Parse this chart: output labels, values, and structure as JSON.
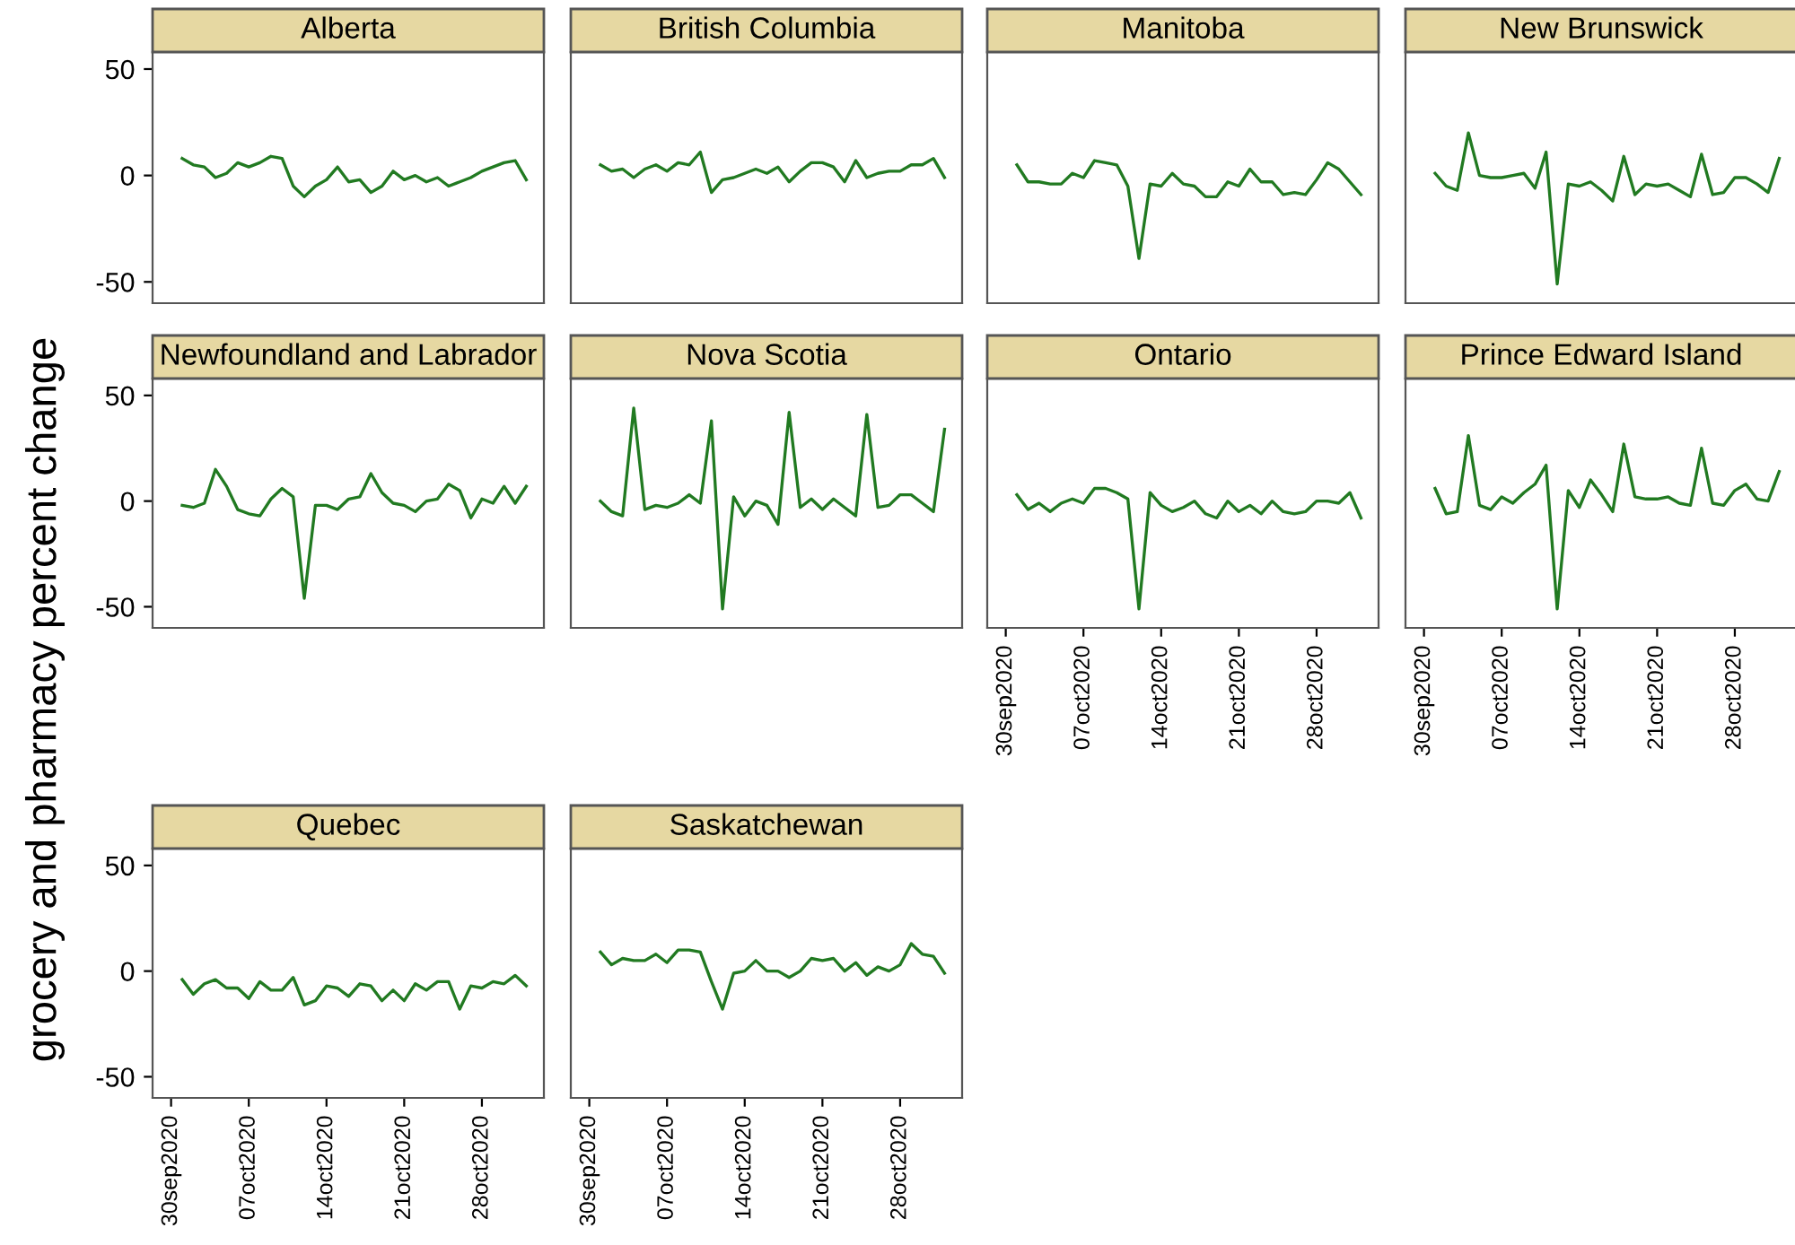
{
  "chart_data": [
    {
      "type": "line",
      "title": "Alberta",
      "ylabel": "grocery and pharmacy percent change",
      "tick_labels": "y",
      "xlim": [
        "2020-09-28T08:00",
        "2020-11-02T14:00"
      ],
      "ylim": [
        -60,
        58
      ],
      "yticks": [
        -50,
        0,
        50
      ],
      "grid": false,
      "legend": false,
      "x": [
        "2020-10-01",
        "2020-10-02",
        "2020-10-03",
        "2020-10-04",
        "2020-10-05",
        "2020-10-06",
        "2020-10-07",
        "2020-10-08",
        "2020-10-09",
        "2020-10-10",
        "2020-10-11",
        "2020-10-12",
        "2020-10-13",
        "2020-10-14",
        "2020-10-15",
        "2020-10-16",
        "2020-10-17",
        "2020-10-18",
        "2020-10-19",
        "2020-10-20",
        "2020-10-21",
        "2020-10-22",
        "2020-10-23",
        "2020-10-24",
        "2020-10-25",
        "2020-10-26",
        "2020-10-27",
        "2020-10-28",
        "2020-10-29",
        "2020-10-30",
        "2020-10-31",
        "2020-11-01"
      ],
      "series": [
        {
          "color": "#217a21",
          "values": [
            8,
            5,
            4,
            -1,
            1,
            6,
            4,
            6,
            9,
            8,
            -5,
            -10,
            -5,
            -2,
            4,
            -3,
            -2,
            -8,
            -5,
            2,
            -2,
            0,
            -3,
            -1,
            -5,
            -3,
            -1,
            2,
            4,
            6,
            7,
            -2
          ]
        }
      ]
    },
    {
      "type": "line",
      "title": "British Columbia",
      "tick_labels": false,
      "xlim": [
        "2020-09-28T08:00",
        "2020-11-02T14:00"
      ],
      "ylim": [
        -60,
        58
      ],
      "grid": false,
      "legend": false,
      "x": [
        "2020-10-01",
        "2020-10-02",
        "2020-10-03",
        "2020-10-04",
        "2020-10-05",
        "2020-10-06",
        "2020-10-07",
        "2020-10-08",
        "2020-10-09",
        "2020-10-10",
        "2020-10-11",
        "2020-10-12",
        "2020-10-13",
        "2020-10-14",
        "2020-10-15",
        "2020-10-16",
        "2020-10-17",
        "2020-10-18",
        "2020-10-19",
        "2020-10-20",
        "2020-10-21",
        "2020-10-22",
        "2020-10-23",
        "2020-10-24",
        "2020-10-25",
        "2020-10-26",
        "2020-10-27",
        "2020-10-28",
        "2020-10-29",
        "2020-10-30",
        "2020-10-31",
        "2020-11-01"
      ],
      "series": [
        {
          "color": "#217a21",
          "values": [
            5,
            2,
            3,
            -1,
            3,
            5,
            2,
            6,
            5,
            11,
            -8,
            -2,
            -1,
            1,
            3,
            1,
            4,
            -3,
            2,
            6,
            6,
            4,
            -3,
            7,
            -1,
            1,
            2,
            2,
            5,
            5,
            8,
            -1
          ]
        }
      ]
    },
    {
      "type": "line",
      "title": "Manitoba",
      "tick_labels": false,
      "xlim": [
        "2020-09-28T08:00",
        "2020-11-02T14:00"
      ],
      "ylim": [
        -60,
        58
      ],
      "grid": false,
      "legend": false,
      "x": [
        "2020-10-01",
        "2020-10-02",
        "2020-10-03",
        "2020-10-04",
        "2020-10-05",
        "2020-10-06",
        "2020-10-07",
        "2020-10-08",
        "2020-10-09",
        "2020-10-10",
        "2020-10-11",
        "2020-10-12",
        "2020-10-13",
        "2020-10-14",
        "2020-10-15",
        "2020-10-16",
        "2020-10-17",
        "2020-10-18",
        "2020-10-19",
        "2020-10-20",
        "2020-10-21",
        "2020-10-22",
        "2020-10-23",
        "2020-10-24",
        "2020-10-25",
        "2020-10-26",
        "2020-10-27",
        "2020-10-28",
        "2020-10-29",
        "2020-10-30",
        "2020-10-31",
        "2020-11-01"
      ],
      "series": [
        {
          "color": "#217a21",
          "values": [
            5,
            -3,
            -3,
            -4,
            -4,
            1,
            -1,
            7,
            6,
            5,
            -5,
            -39,
            -4,
            -5,
            1,
            -4,
            -5,
            -10,
            -10,
            -3,
            -5,
            3,
            -3,
            -3,
            -9,
            -8,
            -9,
            -2,
            6,
            3,
            -3,
            -9
          ]
        }
      ]
    },
    {
      "type": "line",
      "title": "New Brunswick",
      "tick_labels": false,
      "xlim": [
        "2020-09-28T08:00",
        "2020-11-02T14:00"
      ],
      "ylim": [
        -60,
        58
      ],
      "grid": false,
      "legend": false,
      "x": [
        "2020-10-01",
        "2020-10-02",
        "2020-10-03",
        "2020-10-04",
        "2020-10-05",
        "2020-10-06",
        "2020-10-07",
        "2020-10-08",
        "2020-10-09",
        "2020-10-10",
        "2020-10-11",
        "2020-10-12",
        "2020-10-13",
        "2020-10-14",
        "2020-10-15",
        "2020-10-16",
        "2020-10-17",
        "2020-10-18",
        "2020-10-19",
        "2020-10-20",
        "2020-10-21",
        "2020-10-22",
        "2020-10-23",
        "2020-10-24",
        "2020-10-25",
        "2020-10-26",
        "2020-10-27",
        "2020-10-28",
        "2020-10-29",
        "2020-10-30",
        "2020-10-31",
        "2020-11-01"
      ],
      "series": [
        {
          "color": "#217a21",
          "values": [
            1,
            -5,
            -7,
            20,
            0,
            -1,
            -1,
            0,
            1,
            -6,
            11,
            -51,
            -4,
            -5,
            -3,
            -7,
            -12,
            9,
            -9,
            -4,
            -5,
            -4,
            -7,
            -10,
            10,
            -9,
            -8,
            -1,
            -1,
            -4,
            -8,
            8
          ]
        }
      ]
    },
    {
      "type": "line",
      "title": "Newfoundland and Labrador",
      "tick_labels": "y",
      "xlim": [
        "2020-09-28T08:00",
        "2020-11-02T14:00"
      ],
      "ylim": [
        -60,
        58
      ],
      "yticks": [
        -50,
        0,
        50
      ],
      "grid": false,
      "legend": false,
      "x": [
        "2020-10-01",
        "2020-10-02",
        "2020-10-03",
        "2020-10-04",
        "2020-10-05",
        "2020-10-06",
        "2020-10-07",
        "2020-10-08",
        "2020-10-09",
        "2020-10-10",
        "2020-10-11",
        "2020-10-12",
        "2020-10-13",
        "2020-10-14",
        "2020-10-15",
        "2020-10-16",
        "2020-10-17",
        "2020-10-18",
        "2020-10-19",
        "2020-10-20",
        "2020-10-21",
        "2020-10-22",
        "2020-10-23",
        "2020-10-24",
        "2020-10-25",
        "2020-10-26",
        "2020-10-27",
        "2020-10-28",
        "2020-10-29",
        "2020-10-30",
        "2020-10-31",
        "2020-11-01"
      ],
      "series": [
        {
          "color": "#217a21",
          "values": [
            -2,
            -3,
            -1,
            15,
            7,
            -4,
            -6,
            -7,
            1,
            6,
            2,
            -46,
            -2,
            -2,
            -4,
            1,
            2,
            13,
            4,
            -1,
            -2,
            -5,
            0,
            1,
            8,
            5,
            -8,
            1,
            -1,
            7,
            -1,
            7
          ]
        }
      ]
    },
    {
      "type": "line",
      "title": "Nova Scotia",
      "tick_labels": false,
      "xlim": [
        "2020-09-28T08:00",
        "2020-11-02T14:00"
      ],
      "ylim": [
        -60,
        58
      ],
      "grid": false,
      "legend": false,
      "x": [
        "2020-10-01",
        "2020-10-02",
        "2020-10-03",
        "2020-10-04",
        "2020-10-05",
        "2020-10-06",
        "2020-10-07",
        "2020-10-08",
        "2020-10-09",
        "2020-10-10",
        "2020-10-11",
        "2020-10-12",
        "2020-10-13",
        "2020-10-14",
        "2020-10-15",
        "2020-10-16",
        "2020-10-17",
        "2020-10-18",
        "2020-10-19",
        "2020-10-20",
        "2020-10-21",
        "2020-10-22",
        "2020-10-23",
        "2020-10-24",
        "2020-10-25",
        "2020-10-26",
        "2020-10-27",
        "2020-10-28",
        "2020-10-29",
        "2020-10-30",
        "2020-10-31",
        "2020-11-01"
      ],
      "series": [
        {
          "color": "#217a21",
          "values": [
            0,
            -5,
            -7,
            44,
            -4,
            -2,
            -3,
            -1,
            3,
            -1,
            38,
            -51,
            2,
            -7,
            0,
            -2,
            -11,
            42,
            -3,
            1,
            -4,
            1,
            -3,
            -7,
            41,
            -3,
            -2,
            3,
            3,
            -1,
            -5,
            34
          ]
        }
      ]
    },
    {
      "type": "line",
      "title": "Ontario",
      "tick_labels": "x",
      "xlim": [
        "2020-09-28T08:00",
        "2020-11-02T14:00"
      ],
      "ylim": [
        -60,
        58
      ],
      "grid": false,
      "legend": false,
      "xticks": [
        {
          "value": "2020-09-30",
          "label": "30sep2020"
        },
        {
          "value": "2020-10-07",
          "label": "07oct2020"
        },
        {
          "value": "2020-10-14",
          "label": "14oct2020"
        },
        {
          "value": "2020-10-21",
          "label": "21oct2020"
        },
        {
          "value": "2020-10-28",
          "label": "28oct2020"
        }
      ],
      "x": [
        "2020-10-01",
        "2020-10-02",
        "2020-10-03",
        "2020-10-04",
        "2020-10-05",
        "2020-10-06",
        "2020-10-07",
        "2020-10-08",
        "2020-10-09",
        "2020-10-10",
        "2020-10-11",
        "2020-10-12",
        "2020-10-13",
        "2020-10-14",
        "2020-10-15",
        "2020-10-16",
        "2020-10-17",
        "2020-10-18",
        "2020-10-19",
        "2020-10-20",
        "2020-10-21",
        "2020-10-22",
        "2020-10-23",
        "2020-10-24",
        "2020-10-25",
        "2020-10-26",
        "2020-10-27",
        "2020-10-28",
        "2020-10-29",
        "2020-10-30",
        "2020-10-31",
        "2020-11-01"
      ],
      "series": [
        {
          "color": "#217a21",
          "values": [
            3,
            -4,
            -1,
            -5,
            -1,
            1,
            -1,
            6,
            6,
            4,
            1,
            -51,
            4,
            -2,
            -5,
            -3,
            0,
            -6,
            -8,
            0,
            -5,
            -2,
            -6,
            0,
            -5,
            -6,
            -5,
            0,
            0,
            -1,
            4,
            -8
          ]
        }
      ]
    },
    {
      "type": "line",
      "title": "Prince Edward Island",
      "tick_labels": "x",
      "xlim": [
        "2020-09-28T08:00",
        "2020-11-02T14:00"
      ],
      "ylim": [
        -60,
        58
      ],
      "grid": false,
      "legend": false,
      "xticks": [
        {
          "value": "2020-09-30",
          "label": "30sep2020"
        },
        {
          "value": "2020-10-07",
          "label": "07oct2020"
        },
        {
          "value": "2020-10-14",
          "label": "14oct2020"
        },
        {
          "value": "2020-10-21",
          "label": "21oct2020"
        },
        {
          "value": "2020-10-28",
          "label": "28oct2020"
        }
      ],
      "x": [
        "2020-10-01",
        "2020-10-02",
        "2020-10-03",
        "2020-10-04",
        "2020-10-05",
        "2020-10-06",
        "2020-10-07",
        "2020-10-08",
        "2020-10-09",
        "2020-10-10",
        "2020-10-11",
        "2020-10-12",
        "2020-10-13",
        "2020-10-14",
        "2020-10-15",
        "2020-10-16",
        "2020-10-17",
        "2020-10-18",
        "2020-10-19",
        "2020-10-20",
        "2020-10-21",
        "2020-10-22",
        "2020-10-23",
        "2020-10-24",
        "2020-10-25",
        "2020-10-26",
        "2020-10-27",
        "2020-10-28",
        "2020-10-29",
        "2020-10-30",
        "2020-10-31",
        "2020-11-01"
      ],
      "series": [
        {
          "color": "#217a21",
          "values": [
            6,
            -6,
            -5,
            31,
            -2,
            -4,
            2,
            -1,
            4,
            8,
            17,
            -51,
            5,
            -3,
            10,
            3,
            -5,
            27,
            2,
            1,
            1,
            2,
            -1,
            -2,
            25,
            -1,
            -2,
            5,
            8,
            1,
            0,
            14
          ]
        }
      ]
    },
    {
      "type": "line",
      "title": "Quebec",
      "xlim": [
        "2020-09-28T08:00",
        "2020-11-02T14:00"
      ],
      "ylim": [
        -60,
        58
      ],
      "yticks": [
        -50,
        0,
        50
      ],
      "grid": false,
      "legend": false,
      "xticks": [
        {
          "value": "2020-09-30",
          "label": "30sep2020"
        },
        {
          "value": "2020-10-07",
          "label": "07oct2020"
        },
        {
          "value": "2020-10-14",
          "label": "14oct2020"
        },
        {
          "value": "2020-10-21",
          "label": "21oct2020"
        },
        {
          "value": "2020-10-28",
          "label": "28oct2020"
        }
      ],
      "x": [
        "2020-10-01",
        "2020-10-02",
        "2020-10-03",
        "2020-10-04",
        "2020-10-05",
        "2020-10-06",
        "2020-10-07",
        "2020-10-08",
        "2020-10-09",
        "2020-10-10",
        "2020-10-11",
        "2020-10-12",
        "2020-10-13",
        "2020-10-14",
        "2020-10-15",
        "2020-10-16",
        "2020-10-17",
        "2020-10-18",
        "2020-10-19",
        "2020-10-20",
        "2020-10-21",
        "2020-10-22",
        "2020-10-23",
        "2020-10-24",
        "2020-10-25",
        "2020-10-26",
        "2020-10-27",
        "2020-10-28",
        "2020-10-29",
        "2020-10-30",
        "2020-10-31",
        "2020-11-01"
      ],
      "series": [
        {
          "color": "#217a21",
          "values": [
            -4,
            -11,
            -6,
            -4,
            -8,
            -8,
            -13,
            -5,
            -9,
            -9,
            -3,
            -16,
            -14,
            -7,
            -8,
            -12,
            -6,
            -7,
            -14,
            -9,
            -14,
            -6,
            -9,
            -5,
            -5,
            -18,
            -7,
            -8,
            -5,
            -6,
            -2,
            -7
          ]
        }
      ]
    },
    {
      "type": "line",
      "title": "Saskatchewan",
      "tick_labels": "x",
      "xlim": [
        "2020-09-28T08:00",
        "2020-11-02T14:00"
      ],
      "ylim": [
        -60,
        58
      ],
      "grid": false,
      "legend": false,
      "xticks": [
        {
          "value": "2020-09-30",
          "label": "30sep2020"
        },
        {
          "value": "2020-10-07",
          "label": "07oct2020"
        },
        {
          "value": "2020-10-14",
          "label": "14oct2020"
        },
        {
          "value": "2020-10-21",
          "label": "21oct2020"
        },
        {
          "value": "2020-10-28",
          "label": "28oct2020"
        }
      ],
      "x": [
        "2020-10-01",
        "2020-10-02",
        "2020-10-03",
        "2020-10-04",
        "2020-10-05",
        "2020-10-06",
        "2020-10-07",
        "2020-10-08",
        "2020-10-09",
        "2020-10-10",
        "2020-10-11",
        "2020-10-12",
        "2020-10-13",
        "2020-10-14",
        "2020-10-15",
        "2020-10-16",
        "2020-10-17",
        "2020-10-18",
        "2020-10-19",
        "2020-10-20",
        "2020-10-21",
        "2020-10-22",
        "2020-10-23",
        "2020-10-24",
        "2020-10-25",
        "2020-10-26",
        "2020-10-27",
        "2020-10-28",
        "2020-10-29",
        "2020-10-30",
        "2020-10-31",
        "2020-11-01"
      ],
      "series": [
        {
          "color": "#217a21",
          "values": [
            9,
            3,
            6,
            5,
            5,
            8,
            4,
            10,
            10,
            9,
            -5,
            -18,
            -1,
            0,
            5,
            0,
            0,
            -3,
            0,
            6,
            5,
            6,
            0,
            4,
            -2,
            2,
            0,
            3,
            13,
            8,
            7,
            -1
          ]
        }
      ]
    }
  ]
}
